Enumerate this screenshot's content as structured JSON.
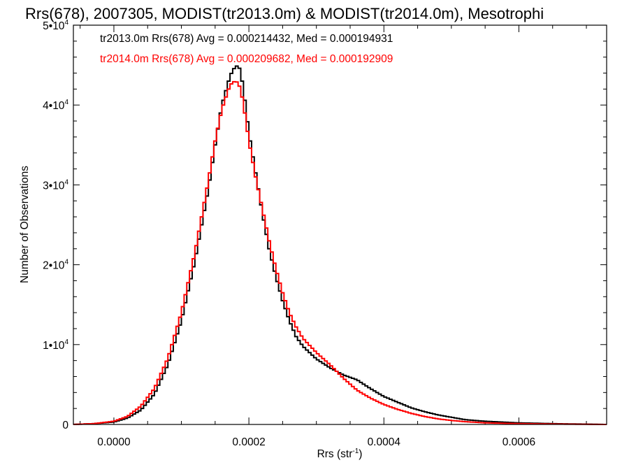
{
  "chart_data": {
    "type": "line",
    "title": "Rrs(678), 2007305, MODIST(tr2013.0m) & MODIST(tr2014.0m), Mesotrophi",
    "xlabel": "Rrs (str",
    "xlabel_sup": "-1",
    "xlabel_end": ")",
    "ylabel": "Number of Observations",
    "xlim": [
      -6e-05,
      0.00073
    ],
    "ylim": [
      0,
      50000
    ],
    "x_ticks": [
      {
        "value": 0.0,
        "label": "0.0000"
      },
      {
        "value": 0.0002,
        "label": "0.0002"
      },
      {
        "value": 0.0004,
        "label": "0.0004"
      },
      {
        "value": 0.0006,
        "label": "0.0006"
      }
    ],
    "y_ticks": [
      {
        "value": 0,
        "label": "0"
      },
      {
        "value": 10000,
        "label": "1•10",
        "sup": "4"
      },
      {
        "value": 20000,
        "label": "2•10",
        "sup": "4"
      },
      {
        "value": 30000,
        "label": "3•10",
        "sup": "4"
      },
      {
        "value": 40000,
        "label": "4•10",
        "sup": "4"
      },
      {
        "value": 50000,
        "label": "5•10",
        "sup": "4"
      }
    ],
    "annotations": [
      {
        "text": "tr2013.0m Rrs(678) Avg = 0.000214432, Med = 0.000194931",
        "color": "#000000"
      },
      {
        "text": "tr2014.0m Rrs(678) Avg = 0.000209682, Med = 0.000192909",
        "color": "#ff0000"
      }
    ],
    "series": [
      {
        "color": "#000000",
        "x": [
          -6e-05,
          -3e-05,
          0.0,
          2e-05,
          4e-05,
          6e-05,
          8e-05,
          0.0001,
          0.00012,
          0.00014,
          0.00015,
          0.00016,
          0.00017,
          0.000175,
          0.00018,
          0.000185,
          0.00019,
          0.000195,
          0.0002,
          0.00021,
          0.00022,
          0.00023,
          0.00024,
          0.00025,
          0.00026,
          0.00027,
          0.00028,
          0.0003,
          0.00032,
          0.00034,
          0.00036,
          0.00038,
          0.0004,
          0.00042,
          0.00044,
          0.00046,
          0.00048,
          0.0005,
          0.00052,
          0.00055,
          0.0006,
          0.00065,
          0.00073
        ],
        "y": [
          0,
          100,
          300,
          800,
          1800,
          3800,
          7500,
          13000,
          20500,
          29500,
          35000,
          40000,
          43000,
          44200,
          44800,
          45000,
          43000,
          40000,
          36500,
          31500,
          26500,
          22000,
          18500,
          15500,
          13000,
          11000,
          9800,
          8200,
          7100,
          6200,
          5600,
          4500,
          3500,
          2800,
          2100,
          1600,
          1200,
          900,
          600,
          400,
          200,
          100,
          0
        ]
      },
      {
        "color": "#ff0000",
        "x": [
          -6e-05,
          -3e-05,
          0.0,
          2e-05,
          4e-05,
          6e-05,
          8e-05,
          0.0001,
          0.00012,
          0.00014,
          0.00015,
          0.00016,
          0.00017,
          0.000175,
          0.00018,
          0.000185,
          0.00019,
          0.000195,
          0.0002,
          0.00021,
          0.00022,
          0.00023,
          0.00024,
          0.00025,
          0.00026,
          0.00027,
          0.00028,
          0.0003,
          0.00032,
          0.00034,
          0.00036,
          0.00038,
          0.0004,
          0.00042,
          0.00044,
          0.00046,
          0.00048,
          0.0005,
          0.00052,
          0.00055,
          0.0006,
          0.00065,
          0.00073
        ],
        "y": [
          0,
          100,
          400,
          1000,
          2300,
          4500,
          8300,
          14000,
          21500,
          30500,
          35500,
          39500,
          42000,
          42800,
          43000,
          42700,
          41000,
          38500,
          35500,
          31000,
          27000,
          23000,
          19500,
          16500,
          14000,
          12200,
          10800,
          9000,
          7500,
          5800,
          4300,
          3300,
          2500,
          1900,
          1400,
          1000,
          700,
          500,
          350,
          200,
          100,
          50,
          0
        ]
      }
    ]
  }
}
